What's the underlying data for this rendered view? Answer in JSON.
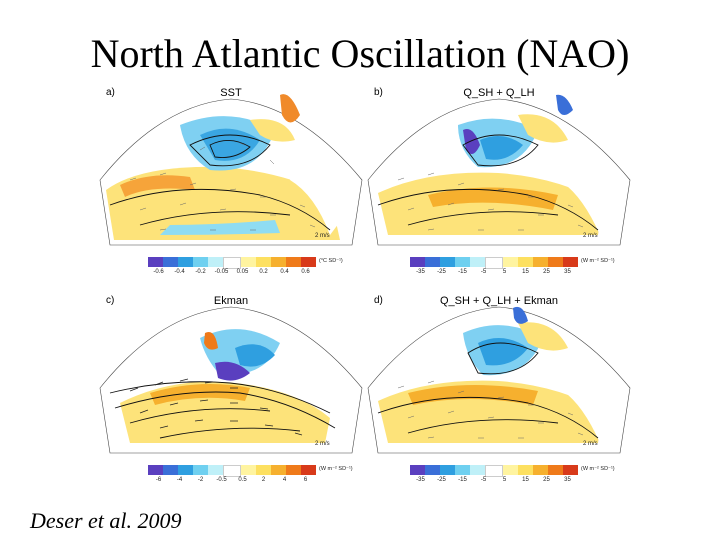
{
  "slide": {
    "title": "North Atlantic Oscillation (NAO)",
    "citation": "Deser et al. 2009"
  },
  "panels": [
    {
      "letter": "a)",
      "title": "SST",
      "colorbar_ticks": [
        "-0.6",
        "-0.4",
        "-0.2",
        "-0.05",
        "0.05",
        "0.2",
        "0.4",
        "0.6"
      ],
      "units": "(°C SD⁻¹)",
      "vector_scale": "2 m/s"
    },
    {
      "letter": "b)",
      "title": "Q_SH + Q_LH",
      "colorbar_ticks": [
        "-35",
        "-25",
        "-15",
        "-5",
        "5",
        "15",
        "25",
        "35"
      ],
      "units": "(W m⁻² SD⁻¹)",
      "vector_scale": "2 m/s"
    },
    {
      "letter": "c)",
      "title": "Ekman",
      "colorbar_ticks": [
        "-6",
        "-4",
        "-2",
        "-0.5",
        "0.5",
        "2",
        "4",
        "6"
      ],
      "units": "(W m⁻² SD⁻¹)",
      "vector_scale": "2 m/s"
    },
    {
      "letter": "d)",
      "title": "Q_SH + Q_LH + Ekman",
      "colorbar_ticks": [
        "-35",
        "-25",
        "-15",
        "-5",
        "5",
        "15",
        "25",
        "35"
      ],
      "units": "(W m⁻² SD⁻¹)",
      "vector_scale": "2 m/s"
    }
  ],
  "colors": {
    "colorbar": [
      "#5a3fbf",
      "#3a6fd8",
      "#2f9fe0",
      "#6fd0f0",
      "#bff0f8",
      "#ffffff",
      "#ffffff",
      "#fff4a0",
      "#fde060",
      "#f6b02e",
      "#ef7a1a",
      "#d83a1a"
    ],
    "land": "#ffffff",
    "contour": "#111111"
  }
}
